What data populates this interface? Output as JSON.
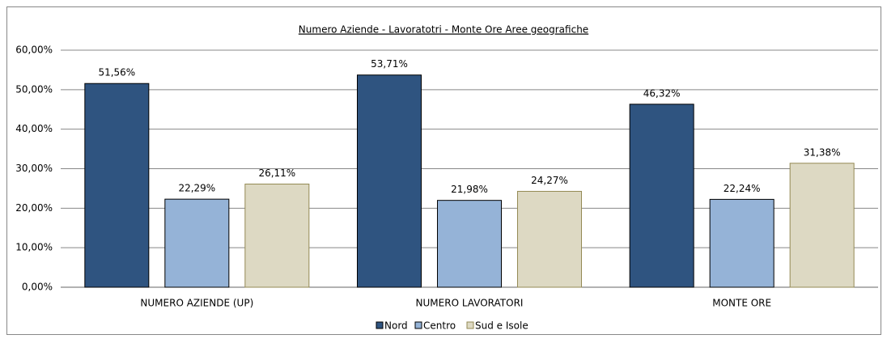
{
  "chart_data": {
    "type": "bar",
    "title": "Numero Aziende - Lavoratotri - Monte Ore Aree geografiche",
    "categories": [
      "NUMERO AZIENDE (UP)",
      "NUMERO LAVORATORI",
      "MONTE ORE"
    ],
    "series": [
      {
        "name": "Nord",
        "color": "#2f5480",
        "values": [
          51.56,
          53.71,
          46.32
        ],
        "value_labels": [
          "51,56%",
          "53,71%",
          "46,32%"
        ]
      },
      {
        "name": "Centro",
        "color": "#95b3d7",
        "values": [
          22.29,
          21.98,
          22.24
        ],
        "value_labels": [
          "22,29%",
          "21,98%",
          "22,24%"
        ]
      },
      {
        "name": "Sud e Isole",
        "color": "#ddd9c3",
        "values": [
          26.11,
          24.27,
          31.38
        ],
        "value_labels": [
          "26,11%",
          "24,27%",
          "31,38%"
        ]
      }
    ],
    "ylim": [
      0,
      60
    ],
    "yticks": [
      {
        "value": 0,
        "label": "0,00%"
      },
      {
        "value": 10,
        "label": "10,00%"
      },
      {
        "value": 20,
        "label": "20,00%"
      },
      {
        "value": 30,
        "label": "30,00%"
      },
      {
        "value": 40,
        "label": "40,00%"
      },
      {
        "value": 50,
        "label": "50,00%"
      },
      {
        "value": 60,
        "label": "60,00%"
      }
    ],
    "grid": true,
    "legend": "bottom"
  }
}
